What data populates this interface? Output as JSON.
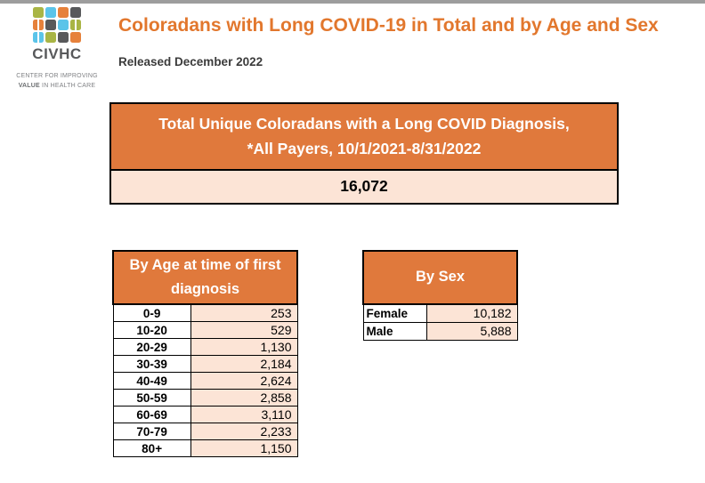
{
  "page": {
    "title": "Coloradans with Long COVID-19 in Total and by Age and Sex",
    "released": "Released December 2022"
  },
  "logo": {
    "name": "CIVHC",
    "tagline_line1": "CENTER FOR IMPROVING",
    "tagline_value": "VALUE",
    "tagline_rest": " IN HEALTH CARE",
    "palette": {
      "green": "#A9B545",
      "blue": "#5BC4E9",
      "orange": "#E6813B",
      "gray": "#58595B"
    },
    "grid": [
      {
        "color": "green",
        "split": false
      },
      {
        "color": "blue",
        "split": false
      },
      {
        "color": "orange",
        "split": false
      },
      {
        "color": "gray",
        "split": false
      },
      {
        "color": "orange",
        "split": true
      },
      {
        "color": "gray",
        "split": false
      },
      {
        "color": "blue",
        "split": false
      },
      {
        "color": "green",
        "split": true
      },
      {
        "color": "blue",
        "split": true
      },
      {
        "color": "green",
        "split": false
      },
      {
        "color": "gray",
        "split": false
      },
      {
        "color": "orange",
        "split": false
      }
    ]
  },
  "total_box": {
    "heading": "Total Unique Coloradans with a Long COVID Diagnosis, *All Payers, 10/1/2021-8/31/2022",
    "value": "16,072"
  },
  "age_table": {
    "heading": "By Age at time of first diagnosis",
    "rows": [
      {
        "label": "0-9",
        "value": "253"
      },
      {
        "label": "10-20",
        "value": "529"
      },
      {
        "label": "20-29",
        "value": "1,130"
      },
      {
        "label": "30-39",
        "value": "2,184"
      },
      {
        "label": "40-49",
        "value": "2,624"
      },
      {
        "label": "50-59",
        "value": "2,858"
      },
      {
        "label": "60-69",
        "value": "3,110"
      },
      {
        "label": "70-79",
        "value": "2,233"
      },
      {
        "label": "80+",
        "value": "1,150"
      }
    ]
  },
  "sex_table": {
    "heading": "By Sex",
    "rows": [
      {
        "label": "Female",
        "value": "10,182"
      },
      {
        "label": "Male",
        "value": "5,888"
      }
    ]
  },
  "colors": {
    "accent_orange": "#E0793C",
    "peach": "#FCE4D6",
    "title_orange": "#E2772D",
    "top_band_gray": "#9D9D9D"
  }
}
